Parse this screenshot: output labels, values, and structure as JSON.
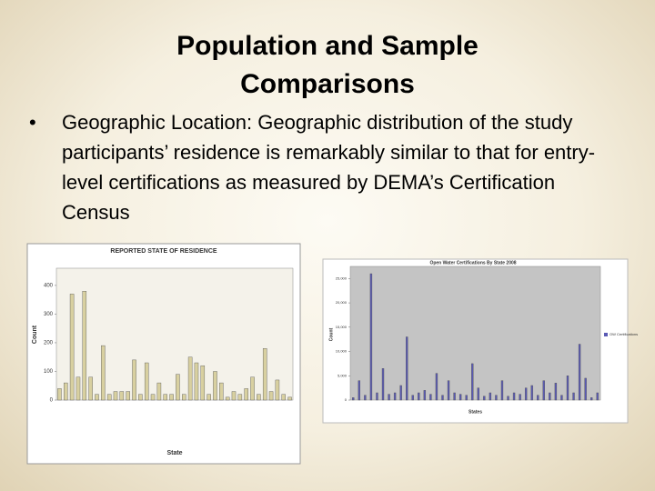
{
  "title": "Population and Sample Comparisons",
  "bullet": "Geographic Location: Geographic distribution of the study participants’ residence is remarkably similar to that for entry-level certifications as measured by DEMA’s Certification Census",
  "chart_data": [
    {
      "type": "bar",
      "title": "REPORTED STATE OF RESIDENCE",
      "x_label": "State",
      "y_label": "Count",
      "values": [
        40,
        60,
        370,
        80,
        380,
        80,
        20,
        190,
        20,
        30,
        30,
        30,
        140,
        20,
        130,
        20,
        60,
        20,
        20,
        90,
        20,
        150,
        130,
        120,
        20,
        100,
        60,
        10,
        30,
        20,
        40,
        80,
        20,
        180,
        30,
        70,
        20,
        10
      ],
      "color": "#d8d0a0",
      "ylim": [
        0,
        460
      ],
      "yticks": [
        0,
        100,
        200,
        300,
        400
      ]
    },
    {
      "type": "bar",
      "title": "Open Water Certifications By State 2008",
      "x_label": "States",
      "y_label": "Count",
      "series": [
        {
          "name": "OW Certifications",
          "color": "#5a5ab4",
          "values": [
            500,
            4000,
            1000,
            26000,
            1500,
            6500,
            1200,
            1500,
            3000,
            13000,
            1000,
            1500,
            2000,
            1200,
            5500,
            1000,
            4000,
            1500,
            1200,
            1000,
            7500,
            2500,
            800,
            1500,
            1000,
            4000,
            800,
            1500,
            1200,
            2500,
            3000,
            1000,
            4000,
            1500,
            3500,
            1000,
            5000,
            1500,
            11500,
            4500,
            500,
            1500
          ]
        }
      ],
      "ylim": [
        0,
        27500
      ],
      "yticks": [
        0,
        {
          "value": 5000,
          "label": "5,000"
        },
        {
          "value": 10000,
          "label": "10,000"
        },
        {
          "value": 15000,
          "label": "15,000"
        },
        {
          "value": 20000,
          "label": "20,000"
        },
        {
          "value": 25000,
          "label": "25,000"
        }
      ]
    }
  ]
}
